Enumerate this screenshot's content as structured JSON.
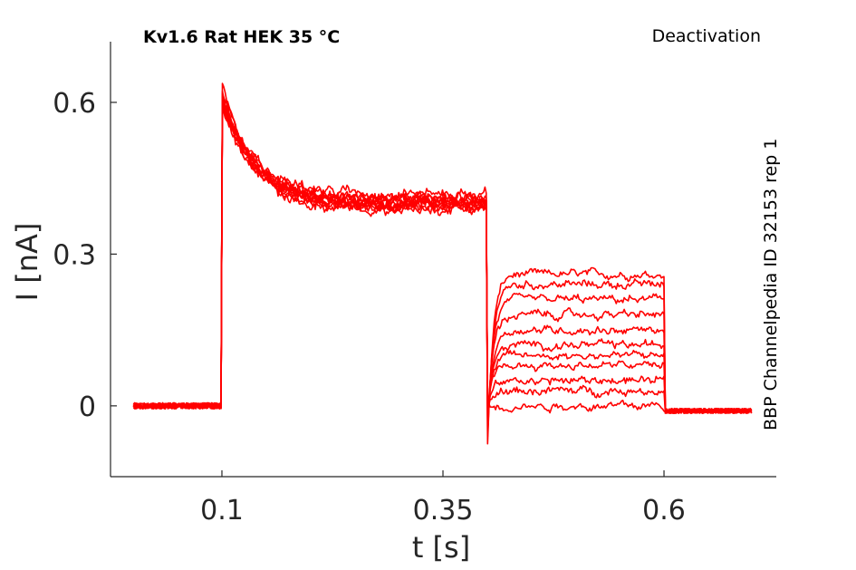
{
  "chart_data": {
    "type": "line",
    "title": "Kv1.6  Rat  HEK  35 °C",
    "protocol": "Deactivation",
    "side_label": "BBP Channelpedia ID 32153 rep 1",
    "xlabel": "t [s]",
    "ylabel": "I [nA]",
    "x_ticks": [
      {
        "value": 0.1,
        "label": "0.1"
      },
      {
        "value": 0.35,
        "label": "0.35"
      },
      {
        "value": 0.6,
        "label": "0.6"
      }
    ],
    "y_ticks": [
      {
        "value": 0,
        "label": "0"
      },
      {
        "value": 0.3,
        "label": "0.3"
      },
      {
        "value": 0.6,
        "label": "0.6"
      }
    ],
    "xlim": [
      -0.026,
      0.727
    ],
    "ylim": [
      -0.14,
      0.72
    ],
    "grid": false,
    "legend": "none",
    "color": "#ff0000",
    "step_times_s": [
      0.0,
      0.1,
      0.4,
      0.6,
      0.7
    ],
    "activation_peak_nA": 0.64,
    "activation_steady_nA": 0.4,
    "series": [
      {
        "values": [
          0.0,
          0.64,
          0.4,
          -0.11,
          0.26,
          -0.01
        ]
      },
      {
        "values": [
          0.0,
          0.63,
          0.4,
          -0.09,
          0.24,
          -0.01
        ]
      },
      {
        "values": [
          0.0,
          0.62,
          0.41,
          -0.07,
          0.21,
          -0.01
        ]
      },
      {
        "values": [
          0.0,
          0.61,
          0.42,
          -0.05,
          0.18,
          -0.01
        ]
      },
      {
        "values": [
          0.0,
          0.62,
          0.4,
          -0.04,
          0.15,
          -0.01
        ]
      },
      {
        "values": [
          0.0,
          0.6,
          0.39,
          -0.03,
          0.12,
          -0.01
        ]
      },
      {
        "values": [
          0.0,
          0.61,
          0.4,
          -0.02,
          0.1,
          -0.01
        ]
      },
      {
        "values": [
          0.0,
          0.6,
          0.4,
          -0.02,
          0.08,
          -0.01
        ]
      },
      {
        "values": [
          0.0,
          0.62,
          0.41,
          -0.01,
          0.05,
          -0.01
        ]
      },
      {
        "values": [
          0.0,
          0.61,
          0.4,
          -0.01,
          0.03,
          -0.01
        ]
      },
      {
        "values": [
          0.0,
          0.6,
          0.39,
          0.0,
          0.0,
          -0.01
        ]
      }
    ]
  }
}
